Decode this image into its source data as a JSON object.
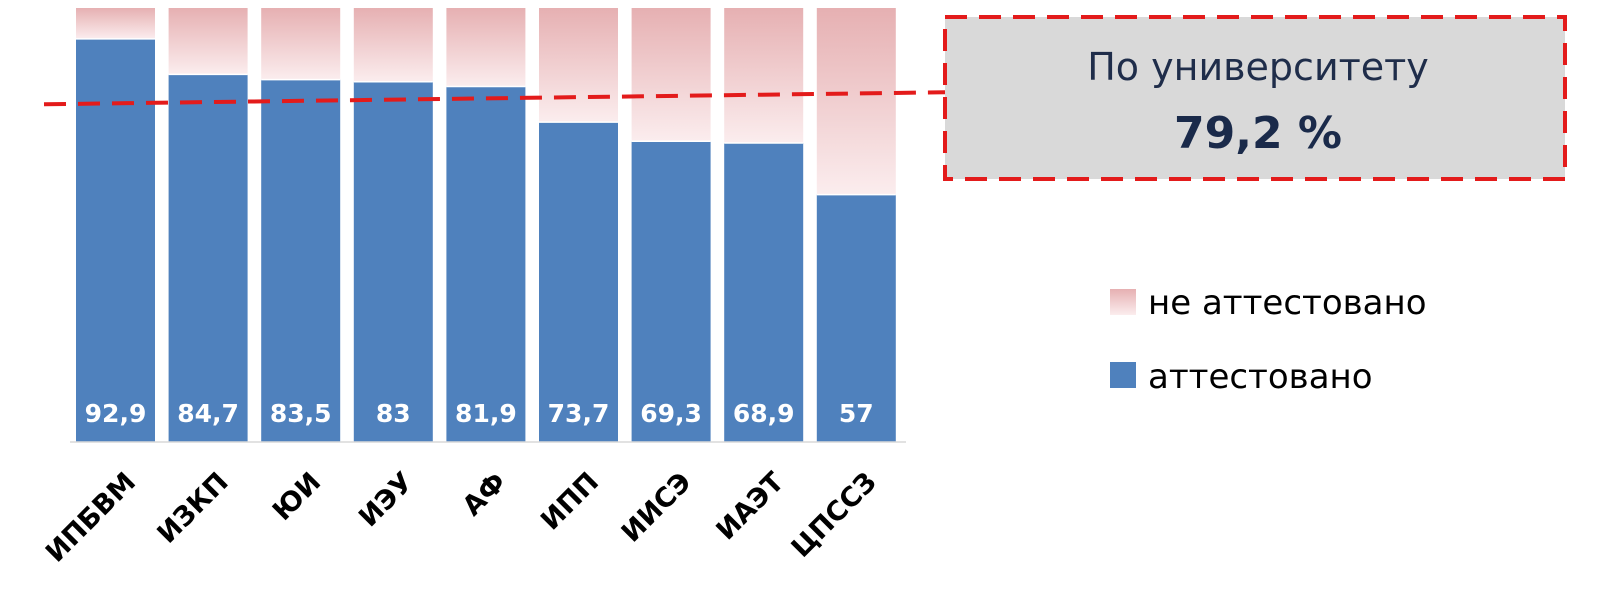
{
  "chart_data": {
    "type": "bar",
    "stacked": true,
    "categories": [
      "ИПБВМ",
      "ИЗКП",
      "ЮИ",
      "ИЭУ",
      "АФ",
      "ИПП",
      "ИИСЭ",
      "ИАЭТ",
      "ЦПССЗ"
    ],
    "series": [
      {
        "name": "аттестовано",
        "values": [
          92.9,
          84.7,
          83.5,
          83,
          81.9,
          73.7,
          69.3,
          68.9,
          57
        ],
        "labels": [
          "92,9",
          "84,7",
          "83,5",
          "83",
          "81,9",
          "73,7",
          "69,3",
          "68,9",
          "57"
        ],
        "color": "#4F81BD"
      },
      {
        "name": "не аттестовано",
        "values": [
          7.1,
          15.3,
          16.5,
          17,
          18.1,
          26.3,
          30.7,
          31.1,
          43
        ],
        "color": "#E6B0B2"
      }
    ],
    "ylim": [
      0,
      100
    ],
    "grid": false,
    "legend": "right",
    "reference_line": {
      "value": 79.2,
      "color": "#E31B1B",
      "style": "dashed"
    }
  },
  "callout": {
    "title": "По университету",
    "value": "79,2 %"
  },
  "legend": {
    "items": [
      {
        "name": "не аттестовано"
      },
      {
        "name": "аттестовано"
      }
    ]
  }
}
